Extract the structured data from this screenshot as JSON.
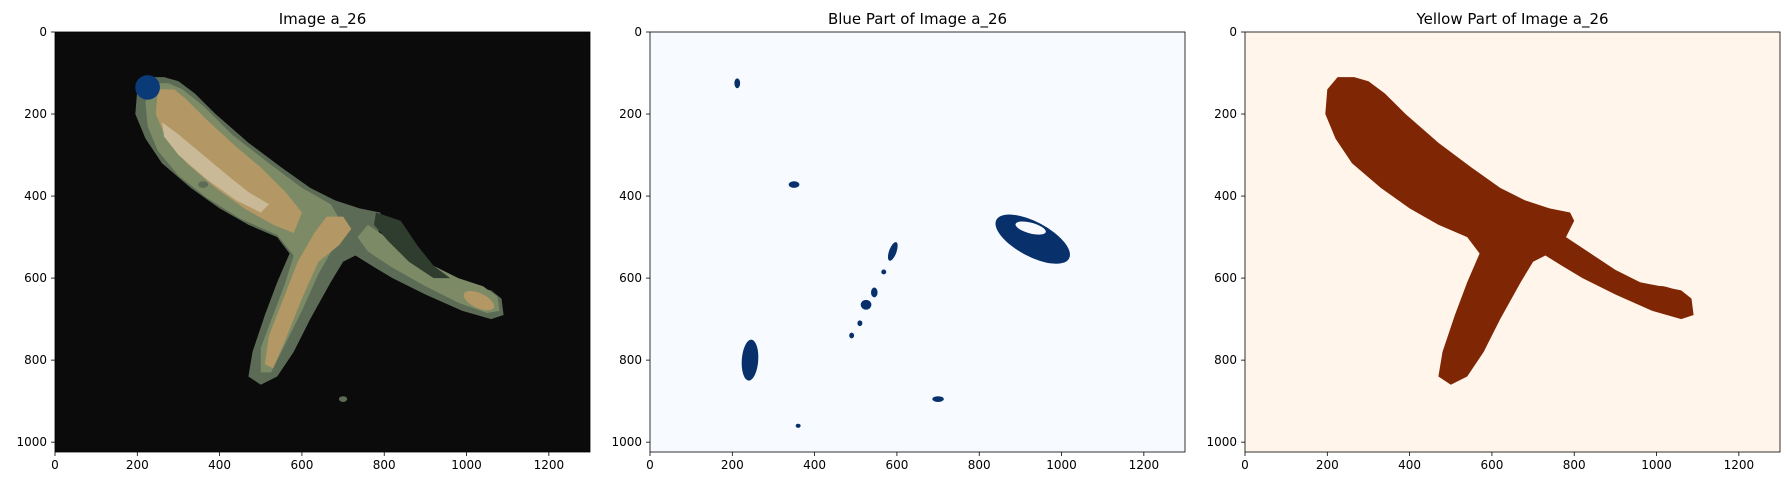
{
  "figure": {
    "background": "#ffffff"
  },
  "chart_data": [
    {
      "type": "image",
      "title": "Image a_26",
      "xlim": [
        0,
        1300
      ],
      "ylim": [
        1024,
        0
      ],
      "xticks": [
        0,
        200,
        400,
        600,
        800,
        1000,
        1200
      ],
      "yticks": [
        0,
        200,
        400,
        600,
        800,
        1000
      ],
      "background_color": "#0b0b0b",
      "colors": {
        "outer_edge": "#5c6b55",
        "dark_green": "#2f3d2f",
        "sage": "#7c8a66",
        "tan": "#b39866",
        "light_tan": "#c9b996",
        "blue": "#0a3a78"
      }
    },
    {
      "type": "image",
      "title": "Blue Part of Image a_26",
      "xlim": [
        0,
        1300
      ],
      "ylim": [
        1024,
        0
      ],
      "xticks": [
        0,
        200,
        400,
        600,
        800,
        1000,
        1200
      ],
      "yticks": [
        0,
        200,
        400,
        600,
        800,
        1000
      ],
      "background_color": "#f7fbff",
      "mask_color": "#08306b"
    },
    {
      "type": "image",
      "title": "Yellow Part of Image a_26",
      "xlim": [
        0,
        1300
      ],
      "ylim": [
        1024,
        0
      ],
      "xticks": [
        0,
        200,
        400,
        600,
        800,
        1000,
        1200
      ],
      "yticks": [
        0,
        200,
        400,
        600,
        800,
        1000
      ],
      "background_color": "#fff5eb",
      "mask_color": "#7f2704"
    }
  ]
}
